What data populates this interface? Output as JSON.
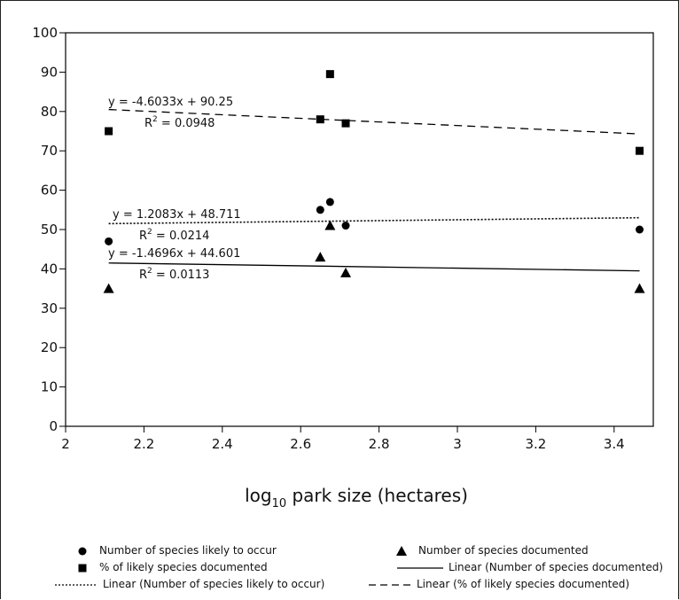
{
  "chart_data": {
    "type": "scatter",
    "xlabel_main": "log",
    "xlabel_sub": "10",
    "xlabel_rest": " park size (hectares)",
    "xlim": [
      2,
      3.5
    ],
    "ylim": [
      0,
      100
    ],
    "xticks": [
      "2",
      "2.2",
      "2.4",
      "2.6",
      "2.8",
      "3",
      "3.2",
      "3.4"
    ],
    "yticks": [
      "0",
      "10",
      "20",
      "30",
      "40",
      "50",
      "60",
      "70",
      "80",
      "90",
      "100"
    ],
    "series": [
      {
        "name": "Number of species likely to occur",
        "marker": "circle",
        "x": [
          2.11,
          2.65,
          2.675,
          2.715,
          3.465
        ],
        "y": [
          47,
          55,
          57,
          51,
          50
        ]
      },
      {
        "name": "Number of species documented",
        "marker": "triangle",
        "x": [
          2.11,
          2.65,
          2.675,
          2.715,
          3.465
        ],
        "y": [
          35,
          43,
          51,
          39,
          35
        ]
      },
      {
        "name": "% of likely species documented",
        "marker": "square",
        "x": [
          2.11,
          2.65,
          2.675,
          2.715,
          3.465
        ],
        "y": [
          75,
          78,
          89.5,
          77,
          70
        ]
      }
    ],
    "trendlines": [
      {
        "name": "Linear (Number of species documented)",
        "style": "solid",
        "x": [
          2.11,
          3.465
        ],
        "y": [
          41.5,
          39.5
        ],
        "equation": "y = -1.4696x + 44.601",
        "r2_prefix": "R",
        "r2_sup": "2",
        "r2_rest": " = 0.0113"
      },
      {
        "name": "Linear (Number of species likely to occur)",
        "style": "dotted",
        "x": [
          2.11,
          3.465
        ],
        "y": [
          51.5,
          53
        ],
        "equation": "y = 1.2083x + 48.711",
        "r2_prefix": "R",
        "r2_sup": "2",
        "r2_rest": " = 0.0214"
      },
      {
        "name": "Linear (% of likely species documented)",
        "style": "dashed",
        "x": [
          2.11,
          3.465
        ],
        "y": [
          80.5,
          74.3
        ],
        "equation": "y = -4.6033x + 90.25",
        "r2_prefix": "R",
        "r2_sup": "2",
        "r2_rest": " = 0.0948"
      }
    ],
    "legend": {
      "placement": "bottom",
      "items": [
        {
          "label": "Number of species likely to occur",
          "symbol": "circle"
        },
        {
          "label": "Number of species documented",
          "symbol": "triangle"
        },
        {
          "label": "% of likely species documented",
          "symbol": "square"
        },
        {
          "label": "Linear (Number of species documented)",
          "symbol": "solid"
        },
        {
          "label": "Linear (Number of species likely to occur)",
          "symbol": "dotted"
        },
        {
          "label": "Linear (% of likely species documented)",
          "symbol": "dashed"
        }
      ]
    },
    "grid": false
  }
}
